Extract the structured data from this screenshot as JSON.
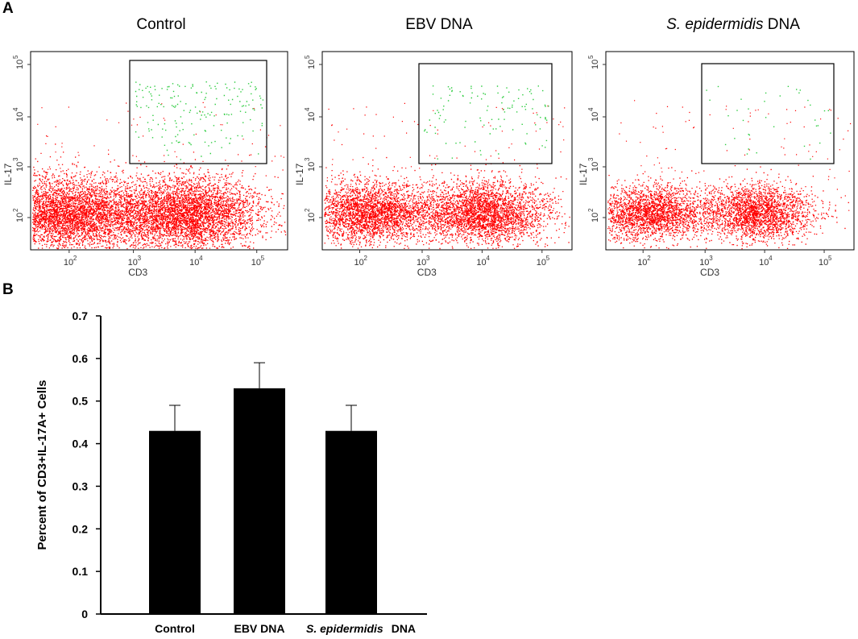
{
  "panel_labels": {
    "a": "A",
    "b": "B"
  },
  "flow_panels": [
    {
      "title": "Control",
      "title_italic": "",
      "title_rest": "",
      "x_label": "CD3",
      "y_label": "IL-17",
      "green_count": 180
    },
    {
      "title": "EBV DNA",
      "title_italic": "",
      "title_rest": "",
      "x_label": "CD3",
      "y_label": "IL-17",
      "green_count": 110
    },
    {
      "title": "",
      "title_italic": "S. epidermidis",
      "title_rest": " DNA",
      "x_label": "CD3",
      "y_label": "IL-17",
      "green_count": 35
    }
  ],
  "flow_axes": {
    "x_ticks": [
      "10",
      "10",
      "10",
      "10"
    ],
    "x_tick_exponents": [
      "2",
      "3",
      "4",
      "5"
    ],
    "y_ticks": [
      "10",
      "10",
      "10",
      "10"
    ],
    "y_tick_exponents": [
      "2",
      "3",
      "4",
      "5"
    ]
  },
  "colors": {
    "population": "#ff0000",
    "gated": "#2ecc40",
    "bars": "#000000"
  },
  "chart_data": {
    "type": "bar",
    "categories": [
      "Control",
      "EBV DNA",
      "S. epidermidis DNA"
    ],
    "category_italic": [
      "",
      "",
      "S. epidermidis"
    ],
    "category_rest": [
      "Control",
      "EBV DNA",
      "DNA"
    ],
    "values": [
      0.43,
      0.53,
      0.43
    ],
    "errors": [
      0.06,
      0.06,
      0.06
    ],
    "ylabel": "Percent of CD3+IL-17A+ Cells",
    "xlabel": "",
    "title": "",
    "ylim": [
      0,
      0.7
    ],
    "yticks": [
      "0",
      "0.1",
      "0.2",
      "0.3",
      "0.4",
      "0.5",
      "0.6",
      "0.7"
    ]
  }
}
